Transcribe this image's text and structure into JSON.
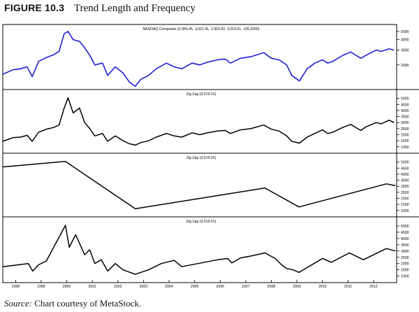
{
  "figure": {
    "number": "FIGURE 10.3",
    "title": "Trend Length and Frequency"
  },
  "caption": {
    "source_label": "Source:",
    "text": "Chart courtesy of MetaStock."
  },
  "colors": {
    "price_line": "#1f1fd6",
    "zigzag_line": "#000000",
    "axis": "#000000"
  },
  "chart_data": [
    {
      "type": "line",
      "title": "NASDAQ Composite (2,956.45, 3,021.41, 2,953.82, 3,019.51, +59.2000)",
      "y_scale": "log",
      "ylim": [
        1100,
        5600
      ],
      "y_ticks": [
        2000,
        3000,
        4000,
        5000
      ],
      "series": [
        {
          "x": [
            1997.6,
            1998.0,
            1998.3,
            1998.55,
            1998.75,
            1999.0,
            1999.3,
            1999.6,
            1999.8,
            2000.0,
            2000.15,
            2000.35,
            2000.6,
            2000.8,
            2001.0,
            2001.2,
            2001.5,
            2001.7,
            2002.0,
            2002.3,
            2002.55,
            2002.78,
            2003.0,
            2003.3,
            2003.6,
            2004.0,
            2004.3,
            2004.6,
            2005.0,
            2005.3,
            2005.6,
            2006.0,
            2006.3,
            2006.5,
            2006.9,
            2007.3,
            2007.8,
            2008.1,
            2008.4,
            2008.7,
            2008.9,
            2009.2,
            2009.5,
            2009.8,
            2010.1,
            2010.3,
            2010.5,
            2010.9,
            2011.2,
            2011.6,
            2011.8,
            2012.2,
            2012.4,
            2012.7,
            2012.9
          ],
          "values": [
            1550,
            1750,
            1800,
            1900,
            1450,
            2200,
            2450,
            2650,
            2900,
            4700,
            5000,
            4000,
            3800,
            3200,
            2600,
            2000,
            2100,
            1500,
            1900,
            1600,
            1250,
            1110,
            1350,
            1500,
            1800,
            2100,
            1900,
            1800,
            2100,
            2000,
            2150,
            2300,
            2350,
            2100,
            2400,
            2500,
            2800,
            2400,
            2300,
            2000,
            1500,
            1290,
            1800,
            2100,
            2300,
            2100,
            2200,
            2600,
            2850,
            2400,
            2600,
            3000,
            2900,
            3100,
            3000
          ]
        }
      ]
    },
    {
      "type": "line",
      "title": "Zig Zag (3,019.51)",
      "y_scale": "linear",
      "ylim": [
        700,
        5500
      ],
      "y_ticks": [
        1000,
        1500,
        2000,
        2500,
        3000,
        3500,
        4000,
        4500,
        5000
      ],
      "series": [
        {
          "x": [
            1997.6,
            1998.0,
            1998.3,
            1998.55,
            1998.75,
            1999.0,
            1999.3,
            1999.6,
            1999.8,
            2000.0,
            2000.15,
            2000.35,
            2000.6,
            2000.8,
            2001.0,
            2001.2,
            2001.5,
            2001.7,
            2002.0,
            2002.3,
            2002.55,
            2002.78,
            2003.0,
            2003.3,
            2003.6,
            2004.0,
            2004.3,
            2004.6,
            2005.0,
            2005.3,
            2005.6,
            2006.0,
            2006.3,
            2006.5,
            2006.9,
            2007.3,
            2007.8,
            2008.1,
            2008.4,
            2008.7,
            2008.9,
            2009.2,
            2009.5,
            2009.8,
            2010.1,
            2010.3,
            2010.5,
            2010.9,
            2011.2,
            2011.6,
            2011.8,
            2012.2,
            2012.4,
            2012.7,
            2012.9
          ],
          "values": [
            1450,
            1750,
            1800,
            1950,
            1450,
            2200,
            2450,
            2600,
            2800,
            4200,
            5050,
            3800,
            4200,
            3000,
            2500,
            1900,
            2100,
            1450,
            1900,
            1500,
            1250,
            1140,
            1350,
            1500,
            1800,
            2100,
            1900,
            1800,
            2150,
            2000,
            2150,
            2300,
            2350,
            2100,
            2400,
            2500,
            2800,
            2450,
            2300,
            1900,
            1450,
            1300,
            1800,
            2100,
            2400,
            2100,
            2200,
            2600,
            2850,
            2350,
            2650,
            3000,
            2900,
            3200,
            3000
          ]
        }
      ]
    },
    {
      "type": "line",
      "title": "Zig Zag (3,019.51)",
      "y_scale": "linear",
      "ylim": [
        700,
        5500
      ],
      "y_ticks": [
        1000,
        1500,
        2000,
        2500,
        3000,
        3500,
        4000,
        4500,
        5000
      ],
      "series": [
        {
          "x": [
            1997.6,
            2000.05,
            2002.78,
            2007.85,
            2009.18,
            2012.6,
            2012.95
          ],
          "values": [
            4600,
            5050,
            1140,
            2850,
            1290,
            3200,
            3050
          ]
        }
      ]
    },
    {
      "type": "line",
      "title": "Zig Zag (3,019.51)",
      "y_scale": "linear",
      "ylim": [
        700,
        5500
      ],
      "y_ticks": [
        1000,
        1500,
        2000,
        2500,
        3000,
        3500,
        4000,
        4500,
        5000
      ],
      "x_tick_labels": [
        "1998",
        "1999",
        "2000",
        "2001",
        "2002",
        "2003",
        "2004",
        "2005",
        "2006",
        "2007",
        "2008",
        "2009",
        "2010",
        "2011",
        "2012"
      ],
      "series": [
        {
          "x": [
            1997.6,
            1998.6,
            1998.77,
            1999.0,
            1999.3,
            2000.05,
            2000.2,
            2000.45,
            2000.8,
            2001.0,
            2001.2,
            2001.45,
            2001.7,
            2002.0,
            2002.3,
            2002.78,
            2003.3,
            2003.8,
            2004.3,
            2004.6,
            2006.0,
            2006.4,
            2006.55,
            2006.9,
            2007.3,
            2007.85,
            2008.25,
            2008.5,
            2008.7,
            2008.95,
            2009.18,
            2009.6,
            2010.1,
            2010.45,
            2011.15,
            2011.7,
            2012.6,
            2012.95
          ],
          "values": [
            1750,
            2000,
            1400,
            1900,
            2200,
            5050,
            3300,
            4300,
            2700,
            3100,
            2000,
            2300,
            1400,
            2000,
            1500,
            1140,
            1500,
            2000,
            2250,
            1750,
            2300,
            2400,
            2050,
            2450,
            2600,
            2850,
            2400,
            1900,
            1600,
            1500,
            1290,
            1800,
            2400,
            2100,
            2850,
            2300,
            3200,
            3000
          ]
        }
      ]
    }
  ]
}
